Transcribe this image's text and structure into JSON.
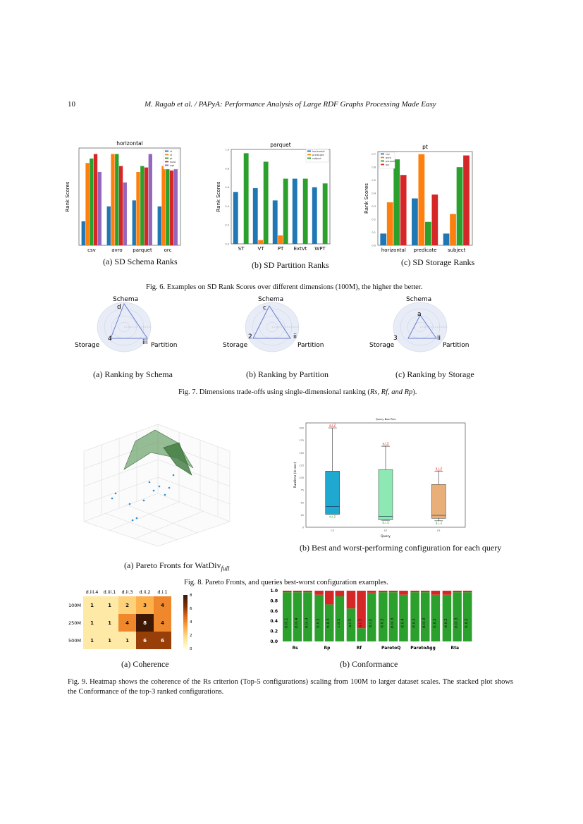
{
  "header": {
    "page_number": "10",
    "running_title": "M. Ragab et al. / PAPyA: Performance Analysis of Large RDF Graphs Processing Made Easy"
  },
  "fig6": {
    "caption": "Fig. 6. Examples on SD Rank Scores over different dimensions (100M), the higher the better.",
    "sub": [
      "(a) SD Schema Ranks",
      "(b) SD Partition Ranks",
      "(c) SD Storage Ranks"
    ]
  },
  "fig7": {
    "caption_prefix": "Fig. 7. Dimensions trade-offs using single-dimensional ranking (",
    "caption_math": "Rs, Rf, and Rp",
    "caption_suffix": ").",
    "sub": [
      "(a) Ranking by Schema",
      "(b) Ranking by Partition",
      "(c) Ranking by Storage"
    ],
    "axes": [
      "Schema",
      "Storage",
      "Partition"
    ],
    "radars": [
      {
        "top": "d",
        "left": "4",
        "right": "iii"
      },
      {
        "top": "c",
        "left": "2",
        "right": "ii"
      },
      {
        "top": "a",
        "left": "3",
        "right": "ii"
      }
    ]
  },
  "fig8": {
    "caption": "Fig. 8. Pareto Fronts, and queries best-worst configuration examples.",
    "sub_a": "(a) Pareto Fronts for WatDiv",
    "sub_a_sub": "full",
    "sub_b": "(b) Best and worst-performing configuration for each query"
  },
  "fig9": {
    "sub": [
      "(a) Coherence",
      "(b) Conformance"
    ],
    "caption": "Fig. 9. Heatmap shows the coherence of the Rs criterion (Top-5 configurations) scaling from 100M to larger dataset scales. The stacked plot shows the Conformance of the top-3 ranked configurations."
  },
  "chart_data": [
    {
      "type": "bar",
      "title": "horizontal",
      "ylabel": "Rank Scores",
      "categories": [
        "csv",
        "avro",
        "parquet",
        "orc"
      ],
      "ylim": [
        0,
        0.65
      ],
      "series": [
        {
          "name": "st",
          "color": "#1f77b4",
          "values": [
            0.16,
            0.26,
            0.3,
            0.26
          ]
        },
        {
          "name": "vt",
          "color": "#ff7f0e",
          "values": [
            0.55,
            0.61,
            0.49,
            0.53
          ]
        },
        {
          "name": "pt",
          "color": "#2ca02c",
          "values": [
            0.58,
            0.61,
            0.53,
            0.52
          ]
        },
        {
          "name": "extvt",
          "color": "#d62728",
          "values": [
            0.61,
            0.53,
            0.52,
            0.5
          ]
        },
        {
          "name": "wpt",
          "color": "#9467bd",
          "values": [
            0.49,
            0.42,
            0.61,
            0.53
          ]
        }
      ]
    },
    {
      "type": "bar",
      "title": "parquet",
      "ylabel": "Rank Scores",
      "categories": [
        "ST",
        "VT",
        "PT",
        "ExtVt",
        "WPT"
      ],
      "ylim": [
        0,
        1.0
      ],
      "yticks": [
        "0.0",
        "0.2",
        "0.4",
        "0.6",
        "0.8",
        "1.0"
      ],
      "series": [
        {
          "name": "horizontal",
          "color": "#1f77b4",
          "values": [
            0.55,
            0.59,
            0.46,
            0.69,
            0.6
          ]
        },
        {
          "name": "predicate",
          "color": "#ff7f0e",
          "values": [
            0.0,
            0.04,
            0.09,
            0.0,
            0.0
          ]
        },
        {
          "name": "subject",
          "color": "#2ca02c",
          "values": [
            0.96,
            0.87,
            0.69,
            0.69,
            0.64
          ]
        }
      ]
    },
    {
      "type": "bar",
      "title": "pt",
      "ylabel": "Rank Scores",
      "categories": [
        "horizontal",
        "predicate",
        "subject"
      ],
      "ylim": [
        0,
        0.72
      ],
      "yticks": [
        "0.0",
        "0.1",
        "0.2",
        "0.3",
        "0.4",
        "0.5",
        "0.6",
        "0.7"
      ],
      "series": [
        {
          "name": "csv",
          "color": "#1f77b4",
          "values": [
            0.09,
            0.36,
            0.09
          ]
        },
        {
          "name": "avro",
          "color": "#ff7f0e",
          "values": [
            0.33,
            0.7,
            0.24
          ]
        },
        {
          "name": "parquet",
          "color": "#2ca02c",
          "values": [
            0.66,
            0.18,
            0.6
          ]
        },
        {
          "name": "orc",
          "color": "#d62728",
          "values": [
            0.54,
            0.39,
            0.69
          ]
        }
      ]
    },
    {
      "type": "box",
      "title": "Query Box Plot",
      "xlabel": "Query",
      "ylabel": "Runtime (in sec)",
      "ylim": [
        0,
        210
      ],
      "yticks": [
        "0",
        "25",
        "50",
        "75",
        "100",
        "125",
        "150",
        "175",
        "200"
      ],
      "categories": [
        "C3",
        "S7",
        "F5"
      ],
      "series": [
        {
          "name": "C3",
          "color": "#1fa8d0",
          "min": 26,
          "q1": 26,
          "median": 42,
          "q3": 113,
          "max": 200,
          "worst": "a.i.2",
          "best": "d.i.2"
        },
        {
          "name": "S7",
          "color": "#8ee8b4",
          "min": 14,
          "q1": 15,
          "median": 22,
          "q3": 116,
          "max": 163,
          "worst": "a.i.2",
          "best": "d.i.3"
        },
        {
          "name": "F5",
          "color": "#e8b078",
          "min": 13,
          "q1": 18,
          "median": 24,
          "q3": 86,
          "max": 113,
          "worst": "a.i.3",
          "best": "d.i.3"
        }
      ]
    },
    {
      "type": "heatmap",
      "columns": [
        "d.iii.4",
        "d.iii.1",
        "d.ii.3",
        "d.ii.2",
        "d.i.1"
      ],
      "rows": [
        "100M",
        "250M",
        "500M"
      ],
      "values": [
        [
          1,
          1,
          2,
          3,
          4
        ],
        [
          1,
          1,
          4,
          8,
          4
        ],
        [
          1,
          1,
          1,
          6,
          6
        ]
      ],
      "colorbar_ticks": [
        "0",
        "2",
        "4",
        "6",
        "8"
      ],
      "colorbar_range": [
        0,
        8
      ]
    },
    {
      "type": "bar",
      "stacked": true,
      "ylim": [
        0,
        1.0
      ],
      "yticks": [
        "0.0",
        "0.2",
        "0.4",
        "0.6",
        "0.8",
        "1.0"
      ],
      "groups": [
        {
          "name": "Rs",
          "bars": [
            {
              "label": "d.iii.1",
              "green": 0.97
            },
            {
              "label": "d.iii.4",
              "green": 0.97
            },
            {
              "label": "d.iii.3",
              "green": 0.97
            }
          ]
        },
        {
          "name": "Rp",
          "bars": [
            {
              "label": "b.ii.2",
              "green": 0.92
            },
            {
              "label": "b.ii.3",
              "green": 0.73
            },
            {
              "label": "c.ii.1",
              "green": 0.89
            }
          ]
        },
        {
          "name": "Rf",
          "bars": [
            {
              "label": "a.i.3",
              "green": 0.65
            },
            {
              "label": "a.i.3",
              "green": 0.26
            },
            {
              "label": "b.i.2",
              "green": 0.96
            }
          ]
        },
        {
          "name": "ParetoQ",
          "bars": [
            {
              "label": "d.ii.2",
              "green": 0.97
            },
            {
              "label": "d.iii.3",
              "green": 0.97
            },
            {
              "label": "d.ii.4",
              "green": 0.92
            }
          ]
        },
        {
          "name": "ParetoAgg",
          "bars": [
            {
              "label": "d.ii.2",
              "green": 0.97
            },
            {
              "label": "d.iii.3",
              "green": 0.97
            },
            {
              "label": "b.ii.2",
              "green": 0.92
            }
          ]
        },
        {
          "name": "Rta",
          "bars": [
            {
              "label": "d.ii.2",
              "green": 0.92
            },
            {
              "label": "d.iii.3",
              "green": 0.97
            },
            {
              "label": "b.ii.2",
              "green": 0.97
            }
          ]
        }
      ],
      "colors": {
        "green": "#2ca02c",
        "red": "#d62728"
      }
    }
  ]
}
